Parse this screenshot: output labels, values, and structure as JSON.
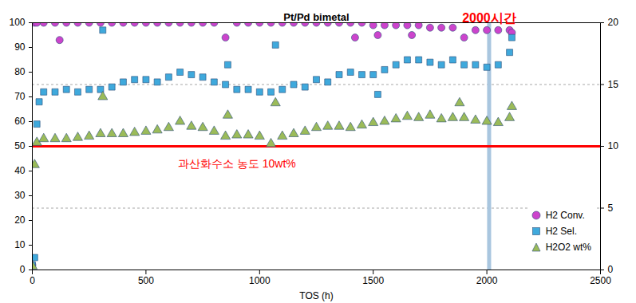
{
  "chart_data": {
    "type": "scatter",
    "title": "Pt/Pd bimetal",
    "x_label": "TOS (h)",
    "xlim": [
      0,
      2500
    ],
    "xticks": [
      0,
      500,
      1000,
      1500,
      2000,
      2500
    ],
    "ylim": [
      0,
      100
    ],
    "yticks": [
      0,
      10,
      20,
      30,
      40,
      50,
      60,
      70,
      80,
      90,
      100
    ],
    "y2lim": [
      0,
      20
    ],
    "y2ticks": [
      0,
      5,
      10,
      15,
      20
    ],
    "grid": true,
    "legend": "bottom-right",
    "series": [
      {
        "name": "H2 Conv.",
        "color": "#cc44cc",
        "marker": "circle",
        "x": [
          0,
          10,
          20,
          50,
          100,
          120,
          150,
          200,
          250,
          300,
          350,
          400,
          450,
          500,
          550,
          600,
          650,
          700,
          750,
          800,
          850,
          900,
          950,
          1000,
          1050,
          1100,
          1150,
          1200,
          1250,
          1300,
          1350,
          1400,
          1420,
          1450,
          1500,
          1520,
          1550,
          1600,
          1650,
          1670,
          1700,
          1750,
          1800,
          1850,
          1900,
          1950,
          2000,
          2050,
          2100,
          2110
        ],
        "values": [
          2,
          100,
          100,
          100,
          100,
          93,
          100,
          100,
          100,
          100,
          100,
          100,
          100,
          100,
          100,
          100,
          100,
          100,
          100,
          100,
          94,
          100,
          100,
          100,
          100,
          100,
          100,
          100,
          100,
          100,
          100,
          100,
          94,
          100,
          99,
          95,
          99,
          99,
          99,
          95,
          99,
          98,
          98,
          98,
          94,
          97,
          97,
          97,
          97,
          96
        ]
      },
      {
        "name": "H2 Sel.",
        "color": "#3fa9dc",
        "marker": "square",
        "x": [
          0,
          10,
          20,
          30,
          50,
          100,
          150,
          200,
          250,
          300,
          310,
          350,
          400,
          450,
          500,
          550,
          600,
          650,
          700,
          750,
          800,
          850,
          860,
          900,
          950,
          1000,
          1050,
          1070,
          1100,
          1150,
          1200,
          1250,
          1300,
          1350,
          1400,
          1450,
          1500,
          1520,
          1550,
          1600,
          1650,
          1700,
          1750,
          1800,
          1850,
          1900,
          1950,
          2000,
          2050,
          2100,
          2110
        ],
        "values": [
          2,
          5,
          59,
          68,
          72,
          72,
          73,
          72,
          73,
          73,
          97,
          74,
          76,
          77,
          77,
          76,
          78,
          80,
          79,
          78,
          76,
          75,
          83,
          73,
          73,
          72,
          72,
          91,
          73,
          75,
          74,
          77,
          76,
          79,
          80,
          79,
          79,
          71,
          81,
          83,
          85,
          85,
          84,
          83,
          85,
          83,
          83,
          82,
          83,
          88,
          94
        ]
      },
      {
        "name": "H2O2 wt%",
        "color": "#9bbb59",
        "marker": "triangle",
        "axis": "y2",
        "x": [
          0,
          10,
          20,
          50,
          100,
          150,
          200,
          250,
          300,
          310,
          350,
          400,
          450,
          500,
          550,
          600,
          650,
          700,
          750,
          800,
          850,
          860,
          900,
          950,
          1000,
          1050,
          1070,
          1100,
          1150,
          1200,
          1250,
          1300,
          1350,
          1400,
          1450,
          1500,
          1550,
          1600,
          1650,
          1700,
          1750,
          1800,
          1850,
          1880,
          1900,
          1950,
          2000,
          2050,
          2100,
          2110
        ],
        "values": [
          0.3,
          8.5,
          10.3,
          10.6,
          10.6,
          10.6,
          10.7,
          10.8,
          11,
          14,
          11,
          11,
          11.1,
          11.2,
          11.3,
          11.5,
          12,
          11.6,
          11.5,
          11.2,
          10.8,
          12.5,
          10.9,
          10.9,
          10.8,
          10.2,
          13.5,
          10.8,
          11,
          11.2,
          11.5,
          11.6,
          11.6,
          11.5,
          11.7,
          11.9,
          12,
          12.2,
          12.4,
          12.3,
          12.5,
          12.2,
          12.3,
          13.5,
          12.3,
          12.1,
          12,
          11.9,
          12.3,
          13.2
        ]
      }
    ],
    "annotations": [
      {
        "text": "과산화수소 농도 10wt%",
        "y2": 10,
        "color": "#ff0000"
      },
      {
        "text": "2000시간",
        "x": 2010,
        "color": "#ff0000"
      }
    ]
  }
}
